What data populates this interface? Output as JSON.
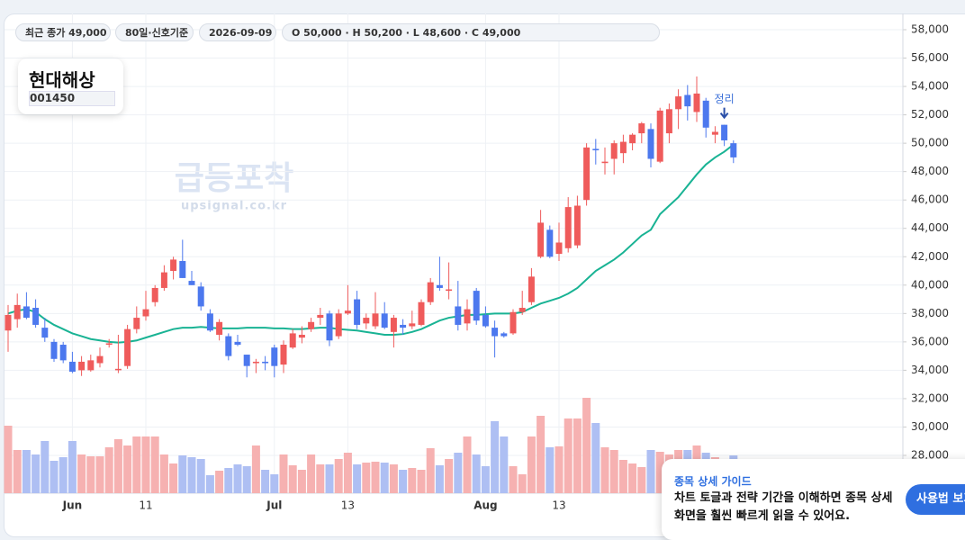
{
  "chart_data": {
    "type": "candlestick",
    "stock": {
      "name": "현대해상",
      "code": "001450"
    },
    "chips": [
      "최근 종가 49,000",
      "80일·신호기준",
      "2026-09-09",
      "O 50,000 · H 50,200 · L 48,600 · C 49,000"
    ],
    "watermark": {
      "title": "급등포착",
      "url": "upsignal.co.kr"
    },
    "categories": [
      null,
      null,
      null,
      null,
      null,
      null,
      null,
      "Jun",
      null,
      null,
      null,
      null,
      null,
      null,
      null,
      "11",
      null,
      null,
      null,
      null,
      null,
      null,
      null,
      null,
      null,
      null,
      null,
      null,
      null,
      "Jul",
      null,
      null,
      null,
      null,
      null,
      null,
      null,
      "13",
      null,
      null,
      null,
      null,
      null,
      null,
      null,
      null,
      null,
      null,
      null,
      null,
      null,
      null,
      "Aug",
      null,
      null,
      null,
      null,
      null,
      null,
      null,
      "13",
      null,
      null,
      null,
      null,
      null,
      null,
      null,
      null,
      null,
      null,
      null,
      null,
      null,
      null,
      null,
      null,
      null,
      null,
      null
    ],
    "open": [
      36800,
      37600,
      38500,
      38400,
      37000,
      36000,
      35800,
      34600,
      34000,
      34000,
      34500,
      35800,
      34000,
      34300,
      36900,
      37800,
      38800,
      39800,
      41000,
      41700,
      40300,
      39900,
      38000,
      36500,
      36400,
      36000,
      35100,
      34500,
      34600,
      35600,
      34400,
      35600,
      36300,
      36900,
      37700,
      38000,
      36400,
      38000,
      39000,
      37300,
      37100,
      38000,
      36700,
      37200,
      37100,
      37200,
      38800,
      40000,
      39600,
      38500,
      37300,
      39600,
      37900,
      37000,
      36600,
      36600,
      38100,
      38800,
      42000,
      43900,
      42200,
      42600,
      42800,
      46000,
      49600,
      48600,
      48900,
      49300,
      50000,
      50700,
      51000,
      48700,
      50700,
      52400,
      53400,
      52200,
      53000,
      50600,
      51300,
      50000
    ],
    "high": [
      38600,
      39400,
      39500,
      39000,
      37700,
      36200,
      36000,
      35300,
      35000,
      35100,
      35600,
      36200,
      36500,
      37200,
      38500,
      39600,
      40000,
      41400,
      42000,
      43200,
      41000,
      40200,
      38300,
      37600,
      36600,
      36500,
      35100,
      34800,
      35000,
      35800,
      36100,
      36900,
      37100,
      37700,
      38400,
      38200,
      38300,
      40000,
      39600,
      38000,
      39500,
      38800,
      37900,
      37600,
      38200,
      39000,
      40500,
      42000,
      41600,
      40300,
      39000,
      39800,
      38500,
      37500,
      36700,
      38300,
      39600,
      41200,
      45300,
      44200,
      44400,
      46200,
      46300,
      50000,
      50300,
      49700,
      50200,
      50600,
      50700,
      51500,
      51400,
      52500,
      52800,
      53800,
      54100,
      54700,
      53200,
      51200,
      51300,
      50200
    ],
    "low": [
      35300,
      37000,
      37600,
      37000,
      36000,
      34600,
      34500,
      33800,
      33600,
      33900,
      34200,
      35600,
      33800,
      34100,
      36600,
      37500,
      38500,
      39600,
      40400,
      40500,
      40000,
      38200,
      36700,
      36100,
      34700,
      35700,
      33500,
      33800,
      34000,
      33500,
      33800,
      35500,
      35900,
      36700,
      37200,
      35700,
      36200,
      37900,
      36900,
      36900,
      36900,
      36900,
      35600,
      36500,
      36900,
      37100,
      38600,
      39600,
      39000,
      36800,
      36800,
      37200,
      37000,
      34900,
      36300,
      36500,
      37900,
      38600,
      41900,
      41900,
      41700,
      42300,
      42600,
      45600,
      48500,
      47800,
      47800,
      48600,
      49500,
      50000,
      48300,
      48600,
      50000,
      51000,
      51600,
      51500,
      50400,
      50000,
      49800,
      48600
    ],
    "close": [
      37900,
      38600,
      37700,
      37200,
      36300,
      34800,
      34700,
      33900,
      34600,
      34700,
      35000,
      35900,
      34100,
      36900,
      37700,
      38300,
      39800,
      40900,
      41800,
      40500,
      40000,
      38500,
      36800,
      37400,
      35000,
      35800,
      34300,
      34600,
      34500,
      34300,
      35800,
      36600,
      36500,
      37400,
      37900,
      36100,
      38000,
      38200,
      37200,
      37700,
      38000,
      37000,
      37700,
      37000,
      37300,
      38800,
      40200,
      39800,
      39700,
      37200,
      38300,
      37500,
      37100,
      36400,
      36400,
      38100,
      38400,
      40600,
      44400,
      42000,
      43000,
      45500,
      45600,
      49700,
      49500,
      48700,
      50000,
      50100,
      50600,
      51400,
      48900,
      52300,
      52400,
      53300,
      52600,
      53500,
      51100,
      50800,
      50200,
      49000
    ],
    "ma": [
      38000,
      38200,
      38300,
      38100,
      37600,
      37200,
      36900,
      36600,
      36400,
      36200,
      36100,
      36000,
      35950,
      36000,
      36100,
      36300,
      36500,
      36700,
      36900,
      37000,
      37000,
      37050,
      37000,
      36950,
      36950,
      36950,
      37000,
      37000,
      37000,
      36950,
      36950,
      36900,
      36900,
      36950,
      37000,
      37000,
      36900,
      36850,
      36800,
      36700,
      36600,
      36500,
      36500,
      36550,
      36700,
      36900,
      37200,
      37500,
      37700,
      37800,
      37900,
      37900,
      37950,
      38000,
      38000,
      38000,
      38100,
      38400,
      38700,
      38900,
      39100,
      39400,
      39800,
      40400,
      41000,
      41400,
      41800,
      42300,
      42900,
      43500,
      43900,
      45000,
      45600,
      46200,
      47000,
      47800,
      48500,
      49000,
      49400,
      49900
    ],
    "ma_color": "#19b394",
    "volume": [
      75,
      48,
      48,
      43,
      58,
      36,
      40,
      58,
      43,
      41,
      41,
      51,
      60,
      53,
      63,
      63,
      63,
      43,
      33,
      42,
      40,
      38,
      20,
      25,
      28,
      32,
      30,
      53,
      26,
      21,
      43,
      31,
      26,
      43,
      32,
      32,
      38,
      45,
      32,
      34,
      35,
      34,
      32,
      26,
      28,
      26,
      50,
      31,
      38,
      45,
      63,
      43,
      30,
      80,
      63,
      30,
      21,
      63,
      86,
      51,
      52,
      83,
      83,
      106,
      78,
      51,
      48,
      37,
      33,
      29,
      48,
      46,
      43,
      48,
      48,
      53,
      45,
      40,
      38,
      42
    ],
    "volume_lim": [
      0,
      110
    ],
    "up_color": "#ef5b5b",
    "down_color": "#4c78ee",
    "up_volume_color": "#f6b1b1",
    "down_volume_color": "#aebff3",
    "ylim": [
      25336,
      59142
    ],
    "yticks": [
      {
        "value": 58000,
        "label": "58,000"
      },
      {
        "value": 56000,
        "label": "56,000"
      },
      {
        "value": 54000,
        "label": "54,000"
      },
      {
        "value": 52000,
        "label": "52,000"
      },
      {
        "value": 50000,
        "label": "50,000"
      },
      {
        "value": 48000,
        "label": "48,000"
      },
      {
        "value": 46000,
        "label": "46,000"
      },
      {
        "value": 44000,
        "label": "44,000"
      },
      {
        "value": 42000,
        "label": "42,000"
      },
      {
        "value": 40000,
        "label": "40,000"
      },
      {
        "value": 38000,
        "label": "38,000"
      },
      {
        "value": 36000,
        "label": "36,000"
      },
      {
        "value": 34000,
        "label": "34,000"
      },
      {
        "value": 32000,
        "label": "32,000"
      },
      {
        "value": 30000,
        "label": "30,000"
      },
      {
        "value": 28000,
        "label": "28,000"
      }
    ],
    "grid": true,
    "annotations": [
      {
        "index": 78,
        "text": "정리"
      }
    ]
  },
  "guide": {
    "title": "종목 상세 가이드",
    "body": "차트 토글과 전략 기간을 이해하면 종목 상세 화면을 훨씬 빠르게 읽을 수 있어요.",
    "button": "사용법 보기"
  }
}
